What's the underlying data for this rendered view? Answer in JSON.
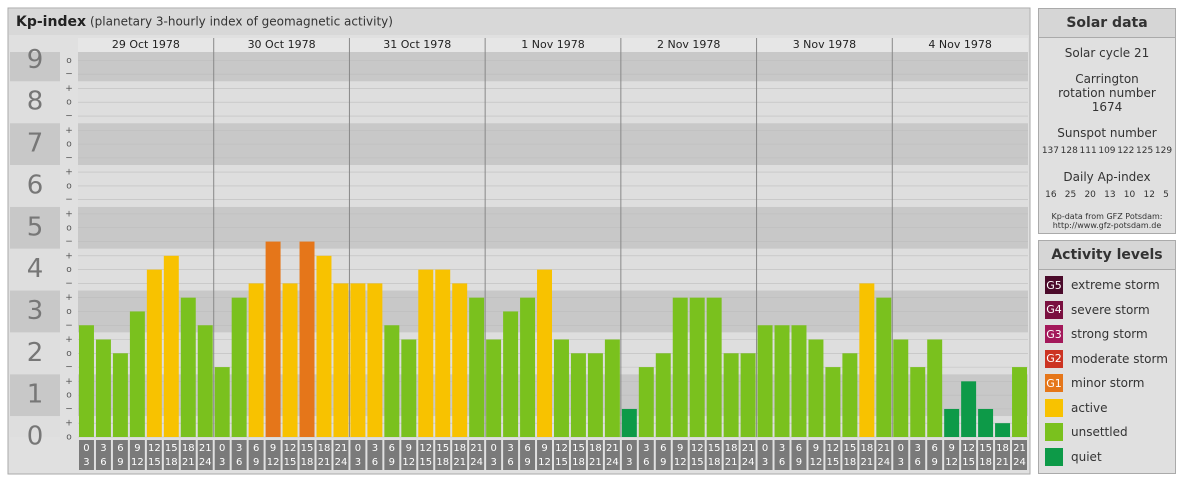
{
  "chart_data": {
    "type": "bar",
    "title": "Kp-index",
    "subtitle": "(planetary 3-hourly index of geomagnetic activity)",
    "days": [
      "29 Oct 1978",
      "30 Oct 1978",
      "31 Oct 1978",
      "1 Nov 1978",
      "2 Nov 1978",
      "3 Nov 1978",
      "4 Nov 1978"
    ],
    "categories": [
      [
        "0",
        "3"
      ],
      [
        "3",
        "6"
      ],
      [
        "6",
        "9"
      ],
      [
        "9",
        "12"
      ],
      [
        "12",
        "15"
      ],
      [
        "15",
        "18"
      ],
      [
        "18",
        "21"
      ],
      [
        "21",
        "24"
      ],
      [
        "0",
        "3"
      ],
      [
        "3",
        "6"
      ],
      [
        "6",
        "9"
      ],
      [
        "9",
        "12"
      ],
      [
        "12",
        "15"
      ],
      [
        "15",
        "18"
      ],
      [
        "18",
        "21"
      ],
      [
        "21",
        "24"
      ],
      [
        "0",
        "3"
      ],
      [
        "3",
        "6"
      ],
      [
        "6",
        "9"
      ],
      [
        "9",
        "12"
      ],
      [
        "12",
        "15"
      ],
      [
        "15",
        "18"
      ],
      [
        "18",
        "21"
      ],
      [
        "21",
        "24"
      ],
      [
        "0",
        "3"
      ],
      [
        "3",
        "6"
      ],
      [
        "6",
        "9"
      ],
      [
        "9",
        "12"
      ],
      [
        "12",
        "15"
      ],
      [
        "15",
        "18"
      ],
      [
        "18",
        "21"
      ],
      [
        "21",
        "24"
      ],
      [
        "0",
        "3"
      ],
      [
        "3",
        "6"
      ],
      [
        "6",
        "9"
      ],
      [
        "9",
        "12"
      ],
      [
        "12",
        "15"
      ],
      [
        "15",
        "18"
      ],
      [
        "18",
        "21"
      ],
      [
        "21",
        "24"
      ],
      [
        "0",
        "3"
      ],
      [
        "3",
        "6"
      ],
      [
        "6",
        "9"
      ],
      [
        "9",
        "12"
      ],
      [
        "12",
        "15"
      ],
      [
        "15",
        "18"
      ],
      [
        "18",
        "21"
      ],
      [
        "21",
        "24"
      ],
      [
        "0",
        "3"
      ],
      [
        "3",
        "6"
      ],
      [
        "6",
        "9"
      ],
      [
        "9",
        "12"
      ],
      [
        "12",
        "15"
      ],
      [
        "15",
        "18"
      ],
      [
        "18",
        "21"
      ],
      [
        "21",
        "24"
      ]
    ],
    "values": [
      2.67,
      2.33,
      2,
      3,
      4,
      4.33,
      3.33,
      2.67,
      1.67,
      3.33,
      3.67,
      4.67,
      3.67,
      4.67,
      4.33,
      3.67,
      3.67,
      3.67,
      2.67,
      2.33,
      4,
      4,
      3.67,
      3.33,
      2.33,
      3,
      3.33,
      4,
      2.33,
      2,
      2,
      2.33,
      0.67,
      1.67,
      2,
      3.33,
      3.33,
      3.33,
      2,
      2,
      2.67,
      2.67,
      2.67,
      2.33,
      1.67,
      2,
      3.67,
      3.33,
      2.33,
      1.67,
      2.33,
      0.67,
      1.33,
      0.67,
      0.33,
      1.67
    ],
    "colors": [
      "#7ac11e",
      "#7ac11e",
      "#7ac11e",
      "#7ac11e",
      "#f8c200",
      "#f8c200",
      "#7ac11e",
      "#7ac11e",
      "#7ac11e",
      "#7ac11e",
      "#f8c200",
      "#e5761a",
      "#f8c200",
      "#e5761a",
      "#f8c200",
      "#f8c200",
      "#f8c200",
      "#f8c200",
      "#7ac11e",
      "#7ac11e",
      "#f8c200",
      "#f8c200",
      "#f8c200",
      "#7ac11e",
      "#7ac11e",
      "#7ac11e",
      "#7ac11e",
      "#f8c200",
      "#7ac11e",
      "#7ac11e",
      "#7ac11e",
      "#7ac11e",
      "#0d9a48",
      "#7ac11e",
      "#7ac11e",
      "#7ac11e",
      "#7ac11e",
      "#7ac11e",
      "#7ac11e",
      "#7ac11e",
      "#7ac11e",
      "#7ac11e",
      "#7ac11e",
      "#7ac11e",
      "#7ac11e",
      "#7ac11e",
      "#f8c200",
      "#7ac11e",
      "#7ac11e",
      "#7ac11e",
      "#7ac11e",
      "#0d9a48",
      "#0d9a48",
      "#0d9a48",
      "#0d9a48",
      "#7ac11e"
    ],
    "ylim": [
      0,
      9.2
    ],
    "yticks": [
      0,
      1,
      2,
      3,
      4,
      5,
      6,
      7,
      8,
      9
    ],
    "minor_ticks": [
      {
        "value": 0,
        "label": "o"
      },
      {
        "value": 0.33,
        "label": "+"
      },
      {
        "value": 0.67,
        "label": "−"
      },
      {
        "value": 1,
        "label": "o"
      },
      {
        "value": 1.33,
        "label": "+"
      },
      {
        "value": 1.67,
        "label": "−"
      },
      {
        "value": 2,
        "label": "o"
      },
      {
        "value": 2.33,
        "label": "+"
      },
      {
        "value": 2.67,
        "label": "−"
      },
      {
        "value": 3,
        "label": "o"
      },
      {
        "value": 3.33,
        "label": "+"
      },
      {
        "value": 3.67,
        "label": "−"
      },
      {
        "value": 4,
        "label": "o"
      },
      {
        "value": 4.33,
        "label": "+"
      },
      {
        "value": 4.67,
        "label": "−"
      },
      {
        "value": 5,
        "label": "o"
      },
      {
        "value": 5.33,
        "label": "+"
      },
      {
        "value": 5.67,
        "label": "−"
      },
      {
        "value": 6,
        "label": "o"
      },
      {
        "value": 6.33,
        "label": "+"
      },
      {
        "value": 6.67,
        "label": "−"
      },
      {
        "value": 7,
        "label": "o"
      },
      {
        "value": 7.33,
        "label": "+"
      },
      {
        "value": 7.67,
        "label": "−"
      },
      {
        "value": 8,
        "label": "o"
      },
      {
        "value": 8.33,
        "label": "+"
      },
      {
        "value": 8.67,
        "label": "−"
      },
      {
        "value": 9,
        "label": "o"
      }
    ],
    "grid": true
  },
  "solar": {
    "title": "Solar data",
    "cycle": "Solar cycle 21",
    "carrington": "Carrington rotation number 1674",
    "sunspot_title": "Sunspot number",
    "sunspot": [
      137,
      128,
      111,
      109,
      122,
      125,
      129
    ],
    "ap_title": "Daily Ap-index",
    "ap": [
      16,
      25,
      20,
      13,
      10,
      12,
      5
    ],
    "source": "Kp-data from GFZ Potsdam:",
    "url": "http://www.gfz-potsdam.de"
  },
  "legend": {
    "title": "Activity levels",
    "items": [
      {
        "code": "G5",
        "label": "extreme storm",
        "color": "#4a0a2a"
      },
      {
        "code": "G4",
        "label": "severe storm",
        "color": "#7a1040"
      },
      {
        "code": "G3",
        "label": "strong storm",
        "color": "#a3185a"
      },
      {
        "code": "G2",
        "label": "moderate storm",
        "color": "#cc3322"
      },
      {
        "code": "G1",
        "label": "minor storm",
        "color": "#e5761a"
      },
      {
        "label": "active",
        "color": "#f8c200"
      },
      {
        "label": "unsettled",
        "color": "#7ac11e"
      },
      {
        "label": "quiet",
        "color": "#0d9a48"
      }
    ]
  }
}
